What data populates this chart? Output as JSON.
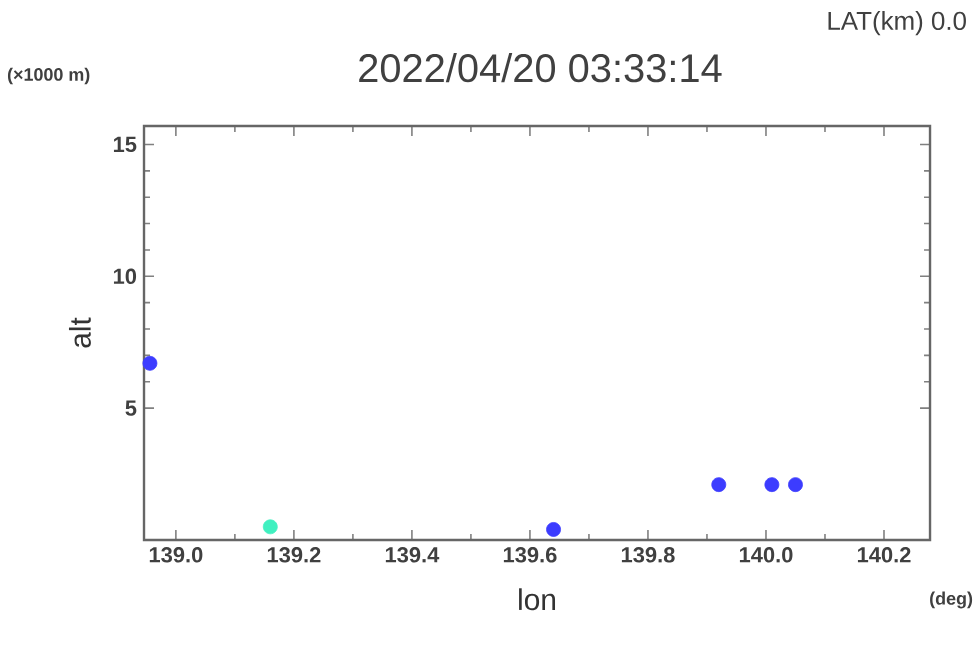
{
  "chart_data": {
    "type": "scatter",
    "title": "2022/04/20 03:33:14",
    "subtitle": "LAT(km) 0.0",
    "xlabel": "lon",
    "ylabel": "alt",
    "annotations": [
      "(×1000 m)",
      "(deg)"
    ],
    "series": [
      {
        "color": "#3c3cff",
        "x": [
          138.956,
          139.64,
          139.92,
          140.01,
          140.05
        ],
        "values": [
          6.7,
          0.4,
          2.1,
          2.1,
          2.1
        ]
      },
      {
        "color": "#40f0c0",
        "x": [
          139.16
        ],
        "values": [
          0.5
        ]
      }
    ],
    "xlim": [
      138.946,
      140.278
    ],
    "ylim": [
      0,
      15.7
    ],
    "xticks": [
      {
        "value": 139.0,
        "label": "139.0"
      },
      139.2,
      139.4,
      139.6,
      139.8,
      {
        "value": 140.0,
        "label": "140.0"
      },
      140.2
    ],
    "yticks": [
      5,
      10,
      15
    ],
    "grid": false
  }
}
